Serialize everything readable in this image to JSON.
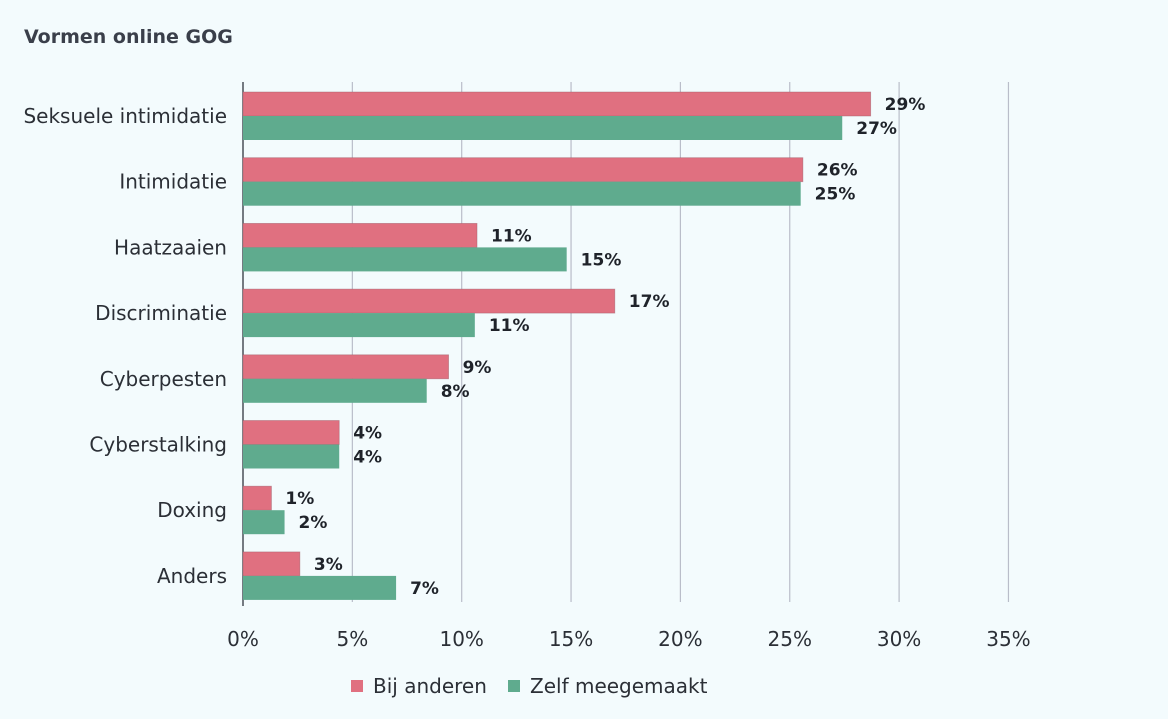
{
  "chart_data": {
    "type": "bar",
    "orientation": "horizontal",
    "title": "Vormen online GOG",
    "categories": [
      "Seksuele intimidatie",
      "Intimidatie",
      "Haatzaaien",
      "Discriminatie",
      "Cyberpesten",
      "Cyberstalking",
      "Doxing",
      "Anders"
    ],
    "series": [
      {
        "name": "Bij anderen",
        "color": "#e07080",
        "values": [
          28.7,
          25.6,
          10.7,
          17.0,
          9.4,
          4.4,
          1.3,
          2.6
        ],
        "labels": [
          "29%",
          "26%",
          "11%",
          "17%",
          "9%",
          "4%",
          "1%",
          "3%"
        ]
      },
      {
        "name": "Zelf meegemaakt",
        "color": "#5fab8e",
        "values": [
          27.4,
          25.5,
          14.8,
          10.6,
          8.4,
          4.4,
          1.9,
          7.0
        ],
        "labels": [
          "27%",
          "25%",
          "15%",
          "11%",
          "8%",
          "4%",
          "2%",
          "7%"
        ]
      }
    ],
    "xlim": [
      0,
      35
    ],
    "xticks": [
      0,
      5,
      10,
      15,
      20,
      25,
      30,
      35
    ],
    "xtick_labels": [
      "0%",
      "5%",
      "10%",
      "15%",
      "20%",
      "25%",
      "30%",
      "35%"
    ],
    "grid": "vertical",
    "legend_position": "bottom-center",
    "xlabel": "",
    "ylabel": ""
  }
}
